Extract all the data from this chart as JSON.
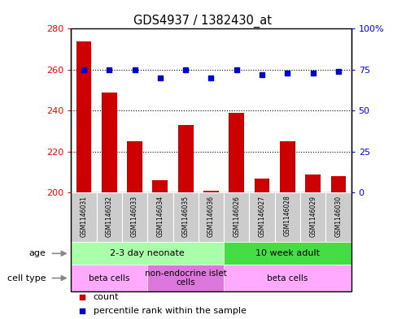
{
  "title": "GDS4937 / 1382430_at",
  "samples": [
    "GSM1146031",
    "GSM1146032",
    "GSM1146033",
    "GSM1146034",
    "GSM1146035",
    "GSM1146036",
    "GSM1146026",
    "GSM1146027",
    "GSM1146028",
    "GSM1146029",
    "GSM1146030"
  ],
  "counts": [
    274,
    249,
    225,
    206,
    233,
    201,
    239,
    207,
    225,
    209,
    208
  ],
  "percentiles": [
    75,
    75,
    75,
    70,
    75,
    70,
    75,
    72,
    73,
    73,
    74
  ],
  "ylim_left": [
    200,
    280
  ],
  "ylim_right": [
    0,
    100
  ],
  "yticks_left": [
    200,
    220,
    240,
    260,
    280
  ],
  "yticks_right": [
    0,
    25,
    50,
    75,
    100
  ],
  "ytick_labels_right": [
    "0",
    "25",
    "50",
    "75",
    "100%"
  ],
  "bar_color": "#cc0000",
  "dot_color": "#0000cc",
  "age_groups": [
    {
      "label": "2-3 day neonate",
      "start": 0,
      "end": 6,
      "color": "#aaffaa"
    },
    {
      "label": "10 week adult",
      "start": 6,
      "end": 11,
      "color": "#44dd44"
    }
  ],
  "cell_type_groups": [
    {
      "label": "beta cells",
      "start": 0,
      "end": 3,
      "color": "#ffaaff"
    },
    {
      "label": "non-endocrine islet\ncells",
      "start": 3,
      "end": 6,
      "color": "#dd77dd"
    },
    {
      "label": "beta cells",
      "start": 6,
      "end": 11,
      "color": "#ffaaff"
    }
  ],
  "legend_items": [
    {
      "color": "#cc0000",
      "label": "count"
    },
    {
      "color": "#0000cc",
      "label": "percentile rank within the sample"
    }
  ],
  "plot_bg": "#ffffff",
  "sample_bg": "#cccccc",
  "left_labels": [
    "age",
    "cell type"
  ],
  "left_arrows_color": "#888888"
}
